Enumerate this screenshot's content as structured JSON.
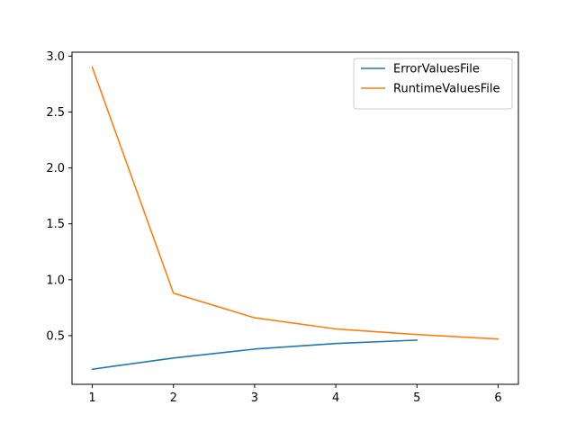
{
  "chart_data": {
    "type": "line",
    "title": "",
    "xlabel": "",
    "ylabel": "",
    "xlim": [
      0.75,
      6.25
    ],
    "ylim": [
      0.065,
      3.035
    ],
    "grid": false,
    "legend_position": "top-right",
    "x_ticks": [
      1,
      2,
      3,
      4,
      5,
      6
    ],
    "x_tick_labels": [
      "1",
      "2",
      "3",
      "4",
      "5",
      "6"
    ],
    "y_ticks": [
      0.5,
      1.0,
      1.5,
      2.0,
      2.5,
      3.0
    ],
    "y_tick_labels": [
      "0.5",
      "1.0",
      "1.5",
      "2.0",
      "2.5",
      "3.0"
    ],
    "series": [
      {
        "name": "ErrorValuesFile",
        "color": "#1f77b4",
        "x": [
          1,
          2,
          3,
          4,
          5
        ],
        "values": [
          0.2,
          0.3,
          0.38,
          0.43,
          0.46
        ]
      },
      {
        "name": "RuntimeValuesFile",
        "color": "#ff7f0e",
        "x": [
          1,
          2,
          3,
          4,
          5,
          6
        ],
        "values": [
          2.9,
          0.88,
          0.66,
          0.56,
          0.51,
          0.47
        ]
      }
    ]
  }
}
